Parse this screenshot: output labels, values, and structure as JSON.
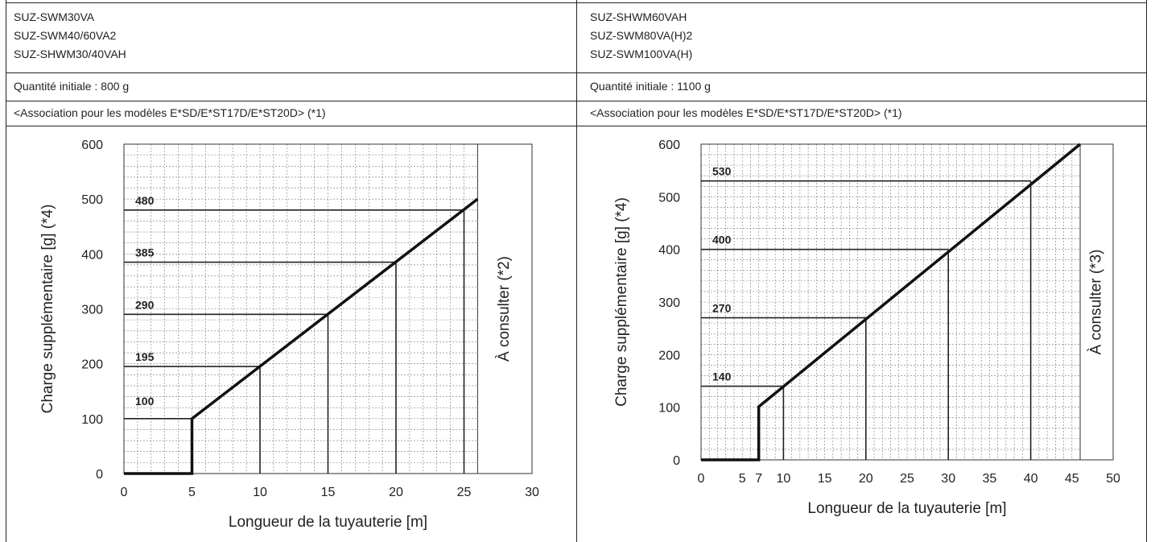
{
  "left": {
    "models": [
      "SUZ-SWM30VA",
      "SUZ-SWM40/60VA2",
      "SUZ-SHWM30/40VAH"
    ],
    "quantity": "Quantité initiale : 800 g",
    "association": "<Association pour les modèles E*SD/E*ST17D/E*ST20D> (*1)"
  },
  "right": {
    "models": [
      "SUZ-SHWM60VAH",
      "SUZ-SWM80VA(H)2",
      "SUZ-SWM100VA(H)"
    ],
    "quantity": "Quantité initiale : 1100 g",
    "association": "<Association pour les modèles E*SD/E*ST17D/E*ST20D> (*1)"
  },
  "chart_data": [
    {
      "type": "line",
      "xlabel": "Longueur de la tuyauterie [m]",
      "ylabel": "Charge supplémentaire [g] (*4)",
      "xlim": [
        0,
        30
      ],
      "ylim": [
        0,
        600
      ],
      "xticks": [
        "0",
        "5",
        "10",
        "15",
        "20",
        "25",
        "30"
      ],
      "yticks": [
        "0",
        "100",
        "200",
        "300",
        "400",
        "500",
        "600"
      ],
      "grid": true,
      "series": [
        {
          "x": [
            0,
            5,
            5,
            26
          ],
          "y": [
            0,
            0,
            100,
            500
          ]
        }
      ],
      "markers": [
        {
          "x": 10,
          "y": 195,
          "label": "195"
        },
        {
          "x": 15,
          "y": 290,
          "label": "290"
        },
        {
          "x": 20,
          "y": 385,
          "label": "385"
        },
        {
          "x": 25,
          "y": 480,
          "label": "480"
        }
      ],
      "base_label": {
        "x": 5,
        "y": 100,
        "label": "100"
      },
      "consult_from_x": 26,
      "consult_label": "À consulter (*2)"
    },
    {
      "type": "line",
      "xlabel": "Longueur de la tuyauterie [m]",
      "ylabel": "Charge supplémentaire [g] (*4)",
      "xlim": [
        0,
        50
      ],
      "ylim": [
        0,
        600
      ],
      "xticks": [
        "0",
        "5",
        "7",
        "10",
        "15",
        "20",
        "25",
        "30",
        "35",
        "40",
        "45",
        "50"
      ],
      "yticks": [
        "0",
        "100",
        "200",
        "300",
        "400",
        "500",
        "600"
      ],
      "grid": true,
      "series": [
        {
          "x": [
            0,
            7,
            7,
            46
          ],
          "y": [
            0,
            0,
            101,
            600
          ]
        }
      ],
      "markers": [
        {
          "x": 10,
          "y": 140,
          "label": "140"
        },
        {
          "x": 20,
          "y": 270,
          "label": "270"
        },
        {
          "x": 30,
          "y": 400,
          "label": "400"
        },
        {
          "x": 40,
          "y": 530,
          "label": "530"
        }
      ],
      "consult_from_x": 46,
      "consult_label": "À consulter (*3)"
    }
  ]
}
